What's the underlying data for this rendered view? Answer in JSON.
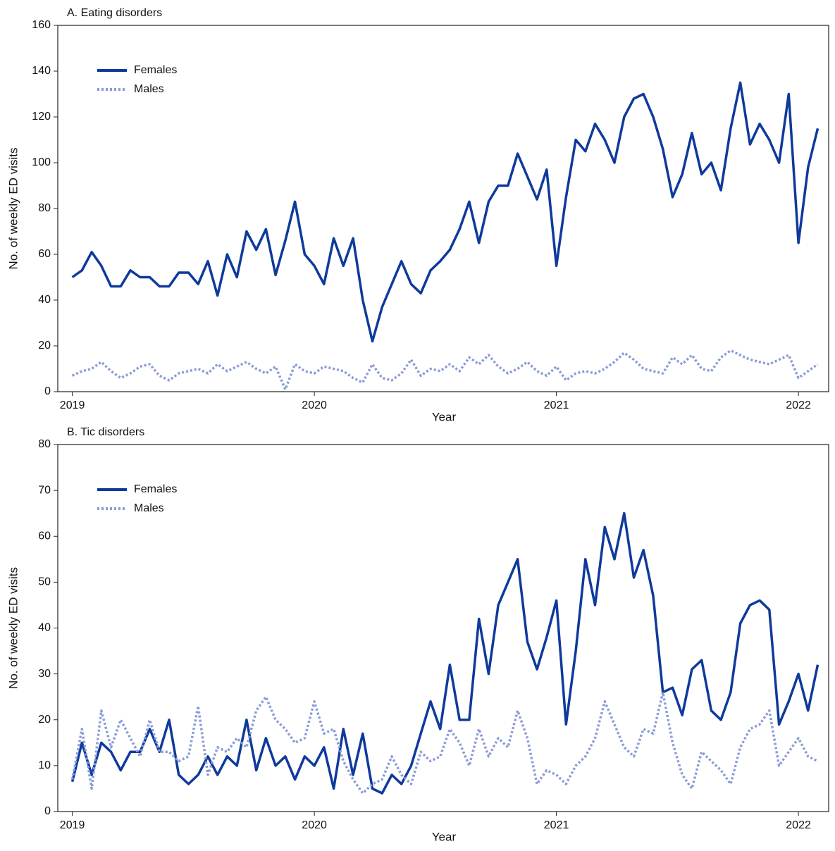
{
  "chart_data": [
    {
      "type": "line",
      "title": "A. Eating disorders",
      "x_label": "Year",
      "y_label": "No. of weekly ED visits",
      "x": [
        2019,
        2019.04,
        2019.08,
        2019.12,
        2019.16,
        2019.2,
        2019.24,
        2019.28,
        2019.32,
        2019.36,
        2019.4,
        2019.44,
        2019.48,
        2019.52,
        2019.56,
        2019.6,
        2019.64,
        2019.68,
        2019.72,
        2019.76,
        2019.8,
        2019.84,
        2019.88,
        2019.92,
        2019.96,
        2020,
        2020.04,
        2020.08,
        2020.12,
        2020.16,
        2020.2,
        2020.24,
        2020.28,
        2020.32,
        2020.36,
        2020.4,
        2020.44,
        2020.48,
        2020.52,
        2020.56,
        2020.6,
        2020.64,
        2020.68,
        2020.72,
        2020.76,
        2020.8,
        2020.84,
        2020.88,
        2020.92,
        2020.96,
        2021,
        2021.04,
        2021.08,
        2021.12,
        2021.16,
        2021.2,
        2021.24,
        2021.28,
        2021.32,
        2021.36,
        2021.4,
        2021.44,
        2021.48,
        2021.52,
        2021.56,
        2021.6,
        2021.64,
        2021.68,
        2021.72,
        2021.76,
        2021.8,
        2021.84,
        2021.88,
        2021.92,
        2021.96,
        2022,
        2022.04,
        2022.08
      ],
      "series": [
        {
          "name": "Females",
          "color": "#0f3a9c",
          "style": "solid",
          "values": [
            50,
            53,
            61,
            55,
            46,
            46,
            53,
            50,
            50,
            46,
            46,
            52,
            52,
            47,
            57,
            42,
            60,
            50,
            70,
            62,
            71,
            51,
            66,
            83,
            60,
            55,
            47,
            67,
            55,
            67,
            40,
            22,
            37,
            47,
            57,
            47,
            43,
            53,
            57,
            62,
            71,
            83,
            65,
            83,
            90,
            90,
            104,
            94,
            84,
            97,
            55,
            85,
            110,
            105,
            117,
            110,
            100,
            120,
            128,
            130,
            120,
            106,
            85,
            95,
            113,
            95,
            100,
            88,
            115,
            135,
            108,
            117,
            110,
            100,
            130,
            65,
            98,
            115
          ]
        },
        {
          "name": "Males",
          "color": "#8a9bd8",
          "style": "dotted",
          "values": [
            7,
            9,
            10,
            13,
            9,
            6,
            8,
            11,
            12,
            7,
            5,
            8,
            9,
            10,
            8,
            12,
            9,
            11,
            13,
            10,
            8,
            11,
            1,
            12,
            9,
            8,
            11,
            10,
            9,
            6,
            4,
            12,
            6,
            5,
            8,
            14,
            7,
            10,
            9,
            12,
            9,
            15,
            12,
            16,
            11,
            8,
            10,
            13,
            9,
            7,
            11,
            5,
            8,
            9,
            8,
            10,
            13,
            17,
            14,
            10,
            9,
            8,
            15,
            12,
            16,
            10,
            9,
            15,
            18,
            16,
            14,
            13,
            12,
            14,
            16,
            6,
            9,
            12
          ]
        }
      ],
      "xlim": [
        2018.94,
        2022.125
      ],
      "xticks": [
        2019,
        2020,
        2021,
        2022
      ],
      "ylim": [
        0,
        160
      ],
      "yticks": [
        0,
        20,
        40,
        60,
        80,
        100,
        120,
        140,
        160
      ],
      "grid": false,
      "legend": "upper left"
    },
    {
      "type": "line",
      "title": "B. Tic disorders",
      "x_label": "Year",
      "y_label": "No. of weekly ED visits",
      "x": [
        2019,
        2019.04,
        2019.08,
        2019.12,
        2019.16,
        2019.2,
        2019.24,
        2019.28,
        2019.32,
        2019.36,
        2019.4,
        2019.44,
        2019.48,
        2019.52,
        2019.56,
        2019.6,
        2019.64,
        2019.68,
        2019.72,
        2019.76,
        2019.8,
        2019.84,
        2019.88,
        2019.92,
        2019.96,
        2020,
        2020.04,
        2020.08,
        2020.12,
        2020.16,
        2020.2,
        2020.24,
        2020.28,
        2020.32,
        2020.36,
        2020.4,
        2020.44,
        2020.48,
        2020.52,
        2020.56,
        2020.6,
        2020.64,
        2020.68,
        2020.72,
        2020.76,
        2020.8,
        2020.84,
        2020.88,
        2020.92,
        2020.96,
        2021,
        2021.04,
        2021.08,
        2021.12,
        2021.16,
        2021.2,
        2021.24,
        2021.28,
        2021.32,
        2021.36,
        2021.4,
        2021.44,
        2021.48,
        2021.52,
        2021.56,
        2021.6,
        2021.64,
        2021.68,
        2021.72,
        2021.76,
        2021.8,
        2021.84,
        2021.88,
        2021.92,
        2021.96,
        2022,
        2022.04,
        2022.08
      ],
      "series": [
        {
          "name": "Females",
          "color": "#0f3a9c",
          "style": "solid",
          "values": [
            6.5,
            15,
            8,
            15,
            13,
            9,
            13,
            13,
            18,
            13,
            20,
            8,
            6,
            8,
            12,
            8,
            12,
            10,
            20,
            9,
            16,
            10,
            12,
            7,
            12,
            10,
            14,
            5,
            18,
            8,
            17,
            5,
            4,
            8,
            6,
            10,
            17,
            24,
            18,
            32,
            20,
            20,
            42,
            30,
            45,
            50,
            55,
            37,
            31,
            38,
            46,
            19,
            35,
            55,
            45,
            62,
            55,
            65,
            51,
            57,
            47,
            26,
            27,
            21,
            31,
            33,
            22,
            20,
            26,
            41,
            45,
            46,
            44,
            19,
            24,
            30,
            22,
            32
          ]
        },
        {
          "name": "Males",
          "color": "#8a9bd8",
          "style": "dotted",
          "values": [
            7,
            18,
            5,
            22,
            14,
            20,
            16,
            12,
            20,
            13,
            13,
            11,
            12,
            23,
            8,
            14,
            13,
            16,
            14,
            22,
            25,
            20,
            18,
            15,
            16,
            24,
            17,
            18,
            11,
            7,
            4,
            6,
            7,
            12,
            8,
            6,
            13,
            11,
            12,
            18,
            15,
            10,
            18,
            12,
            16,
            14,
            22,
            16,
            6,
            9,
            8,
            6,
            10,
            12,
            16,
            24,
            19,
            14,
            12,
            18,
            17,
            26,
            15,
            8,
            5,
            13,
            11,
            9,
            6,
            14,
            18,
            19,
            22,
            10,
            13,
            16,
            12,
            11
          ]
        }
      ],
      "xlim": [
        2018.94,
        2022.125
      ],
      "xticks": [
        2019,
        2020,
        2021,
        2022
      ],
      "ylim": [
        0,
        80
      ],
      "yticks": [
        0,
        10,
        20,
        30,
        40,
        50,
        60,
        70,
        80
      ],
      "grid": false,
      "legend": "upper left"
    }
  ]
}
